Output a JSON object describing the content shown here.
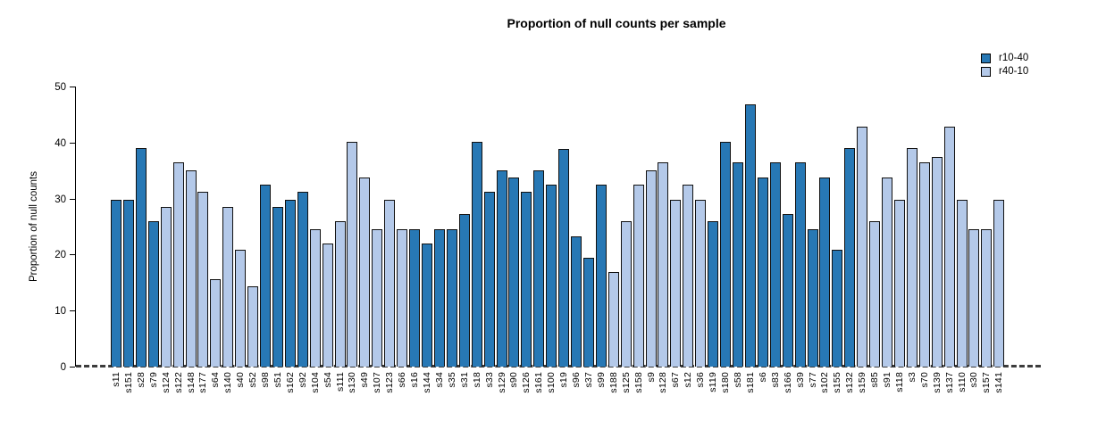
{
  "title": "Proportion of null counts per sample",
  "legend": [
    {
      "label": "r10-40",
      "color": "#2778b5"
    },
    {
      "label": "r40-10",
      "color": "#b4c9e9"
    }
  ],
  "chart_data": {
    "type": "bar",
    "title": "Proportion of null counts per sample",
    "xlabel": "",
    "ylabel": "Proportion of null counts",
    "ylim": [
      0,
      50
    ],
    "yticks": [
      0,
      10,
      20,
      30,
      40,
      50
    ],
    "grid": false,
    "legend_position": "top-right",
    "baseline_style": "dashed-zero-line",
    "series_colors": {
      "r10-40": "#2778b5",
      "r40-10": "#b4c9e9"
    },
    "bar_border_color": "#111111",
    "bars": [
      {
        "label": "s11",
        "value": 29.8,
        "series": "r10-40"
      },
      {
        "label": "s151",
        "value": 29.8,
        "series": "r10-40"
      },
      {
        "label": "s28",
        "value": 39.0,
        "series": "r10-40"
      },
      {
        "label": "s79",
        "value": 26.0,
        "series": "r10-40"
      },
      {
        "label": "s124",
        "value": 28.5,
        "series": "r40-10"
      },
      {
        "label": "s122",
        "value": 36.4,
        "series": "r40-10"
      },
      {
        "label": "s148",
        "value": 35.0,
        "series": "r40-10"
      },
      {
        "label": "s177",
        "value": 31.2,
        "series": "r40-10"
      },
      {
        "label": "s64",
        "value": 15.6,
        "series": "r40-10"
      },
      {
        "label": "s140",
        "value": 28.5,
        "series": "r40-10"
      },
      {
        "label": "s40",
        "value": 20.8,
        "series": "r40-10"
      },
      {
        "label": "s52",
        "value": 14.3,
        "series": "r40-10"
      },
      {
        "label": "s98",
        "value": 32.5,
        "series": "r10-40"
      },
      {
        "label": "s51",
        "value": 28.5,
        "series": "r10-40"
      },
      {
        "label": "s162",
        "value": 29.8,
        "series": "r10-40"
      },
      {
        "label": "s92",
        "value": 31.2,
        "series": "r10-40"
      },
      {
        "label": "s104",
        "value": 24.5,
        "series": "r40-10"
      },
      {
        "label": "s54",
        "value": 22.0,
        "series": "r40-10"
      },
      {
        "label": "s111",
        "value": 26.0,
        "series": "r40-10"
      },
      {
        "label": "s130",
        "value": 40.2,
        "series": "r40-10"
      },
      {
        "label": "s49",
        "value": 33.8,
        "series": "r40-10"
      },
      {
        "label": "s107",
        "value": 24.5,
        "series": "r40-10"
      },
      {
        "label": "s123",
        "value": 29.8,
        "series": "r40-10"
      },
      {
        "label": "s66",
        "value": 24.5,
        "series": "r40-10"
      },
      {
        "label": "s16",
        "value": 24.5,
        "series": "r10-40"
      },
      {
        "label": "s144",
        "value": 22.0,
        "series": "r10-40"
      },
      {
        "label": "s34",
        "value": 24.5,
        "series": "r10-40"
      },
      {
        "label": "s35",
        "value": 24.5,
        "series": "r10-40"
      },
      {
        "label": "s31",
        "value": 27.2,
        "series": "r10-40"
      },
      {
        "label": "s18",
        "value": 40.2,
        "series": "r10-40"
      },
      {
        "label": "s33",
        "value": 31.2,
        "series": "r10-40"
      },
      {
        "label": "s129",
        "value": 35.0,
        "series": "r10-40"
      },
      {
        "label": "s90",
        "value": 33.8,
        "series": "r10-40"
      },
      {
        "label": "s126",
        "value": 31.2,
        "series": "r10-40"
      },
      {
        "label": "s161",
        "value": 35.0,
        "series": "r10-40"
      },
      {
        "label": "s100",
        "value": 32.5,
        "series": "r10-40"
      },
      {
        "label": "s19",
        "value": 38.9,
        "series": "r10-40"
      },
      {
        "label": "s96",
        "value": 23.3,
        "series": "r10-40"
      },
      {
        "label": "s37",
        "value": 19.5,
        "series": "r10-40"
      },
      {
        "label": "s99",
        "value": 32.5,
        "series": "r10-40"
      },
      {
        "label": "s188",
        "value": 16.8,
        "series": "r40-10"
      },
      {
        "label": "s125",
        "value": 26.0,
        "series": "r40-10"
      },
      {
        "label": "s158",
        "value": 32.5,
        "series": "r40-10"
      },
      {
        "label": "s9",
        "value": 35.0,
        "series": "r40-10"
      },
      {
        "label": "s128",
        "value": 36.4,
        "series": "r40-10"
      },
      {
        "label": "s67",
        "value": 29.8,
        "series": "r40-10"
      },
      {
        "label": "s12",
        "value": 32.5,
        "series": "r40-10"
      },
      {
        "label": "s36",
        "value": 29.8,
        "series": "r40-10"
      },
      {
        "label": "s119",
        "value": 26.0,
        "series": "r10-40"
      },
      {
        "label": "s180",
        "value": 40.2,
        "series": "r10-40"
      },
      {
        "label": "s58",
        "value": 36.4,
        "series": "r10-40"
      },
      {
        "label": "s181",
        "value": 46.8,
        "series": "r10-40"
      },
      {
        "label": "s6",
        "value": 33.8,
        "series": "r10-40"
      },
      {
        "label": "s83",
        "value": 36.4,
        "series": "r10-40"
      },
      {
        "label": "s166",
        "value": 27.2,
        "series": "r10-40"
      },
      {
        "label": "s39",
        "value": 36.4,
        "series": "r10-40"
      },
      {
        "label": "s77",
        "value": 24.5,
        "series": "r10-40"
      },
      {
        "label": "s102",
        "value": 33.8,
        "series": "r10-40"
      },
      {
        "label": "s155",
        "value": 20.8,
        "series": "r10-40"
      },
      {
        "label": "s132",
        "value": 39.0,
        "series": "r10-40"
      },
      {
        "label": "s159",
        "value": 42.8,
        "series": "r40-10"
      },
      {
        "label": "s85",
        "value": 26.0,
        "series": "r40-10"
      },
      {
        "label": "s91",
        "value": 33.8,
        "series": "r40-10"
      },
      {
        "label": "s118",
        "value": 29.8,
        "series": "r40-10"
      },
      {
        "label": "s3",
        "value": 39.0,
        "series": "r40-10"
      },
      {
        "label": "s70",
        "value": 36.4,
        "series": "r40-10"
      },
      {
        "label": "s139",
        "value": 37.5,
        "series": "r40-10"
      },
      {
        "label": "s137",
        "value": 42.8,
        "series": "r40-10"
      },
      {
        "label": "s110",
        "value": 29.8,
        "series": "r40-10"
      },
      {
        "label": "s30",
        "value": 24.5,
        "series": "r40-10"
      },
      {
        "label": "s157",
        "value": 24.5,
        "series": "r40-10"
      },
      {
        "label": "s141",
        "value": 29.8,
        "series": "r40-10"
      }
    ]
  }
}
